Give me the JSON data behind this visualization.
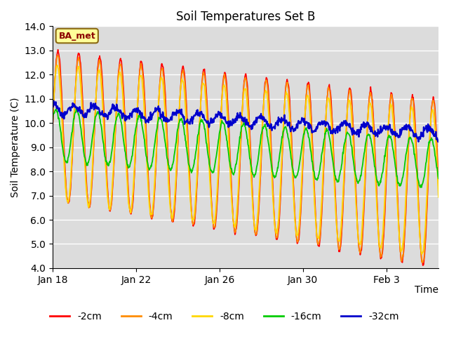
{
  "title": "Soil Temperatures Set B",
  "xlabel": "Time",
  "ylabel": "Soil Temperature (C)",
  "ylim": [
    4.0,
    14.0
  ],
  "yticks": [
    4.0,
    5.0,
    6.0,
    7.0,
    8.0,
    9.0,
    10.0,
    11.0,
    12.0,
    13.0,
    14.0
  ],
  "annotation": "BA_met",
  "annotation_color": "#8B0000",
  "annotation_bg": "#FFFF99",
  "series": [
    {
      "label": "-2cm",
      "color": "#FF0000",
      "phase": 0.25,
      "amp_start": 3.1,
      "amp_end": 3.5,
      "mean_start": 9.9,
      "mean_end": 7.5,
      "lw": 1.2
    },
    {
      "label": "-4cm",
      "color": "#FF8C00",
      "phase": 0.24,
      "amp_start": 3.0,
      "amp_end": 3.4,
      "mean_start": 9.8,
      "mean_end": 7.5,
      "lw": 1.2
    },
    {
      "label": "-8cm",
      "color": "#FFD700",
      "phase": 0.22,
      "amp_start": 2.8,
      "amp_end": 3.0,
      "mean_start": 9.6,
      "mean_end": 7.5,
      "lw": 1.2
    },
    {
      "label": "-16cm",
      "color": "#00CC00",
      "phase": 0.15,
      "amp_start": 1.1,
      "amp_end": 1.0,
      "mean_start": 9.5,
      "mean_end": 8.3,
      "lw": 1.3
    },
    {
      "label": "-32cm",
      "color": "#0000CC",
      "phase": 0.0,
      "amp_start": 0.2,
      "amp_end": 0.2,
      "mean_start": 10.6,
      "mean_end": 9.55,
      "lw": 1.6
    }
  ],
  "xtick_dates": [
    "Jan 18",
    "Jan 22",
    "Jan 26",
    "Jan 30",
    "Feb 3"
  ],
  "xtick_positions": [
    0,
    4,
    8,
    12,
    16
  ],
  "n_days": 18.5,
  "period_days": 1.0,
  "bg_color": "#DCDCDC",
  "fig_color": "#FFFFFF",
  "legend_ncol": 5,
  "grid_color": "#FFFFFF",
  "title_fontsize": 12,
  "label_fontsize": 10,
  "tick_fontsize": 10
}
